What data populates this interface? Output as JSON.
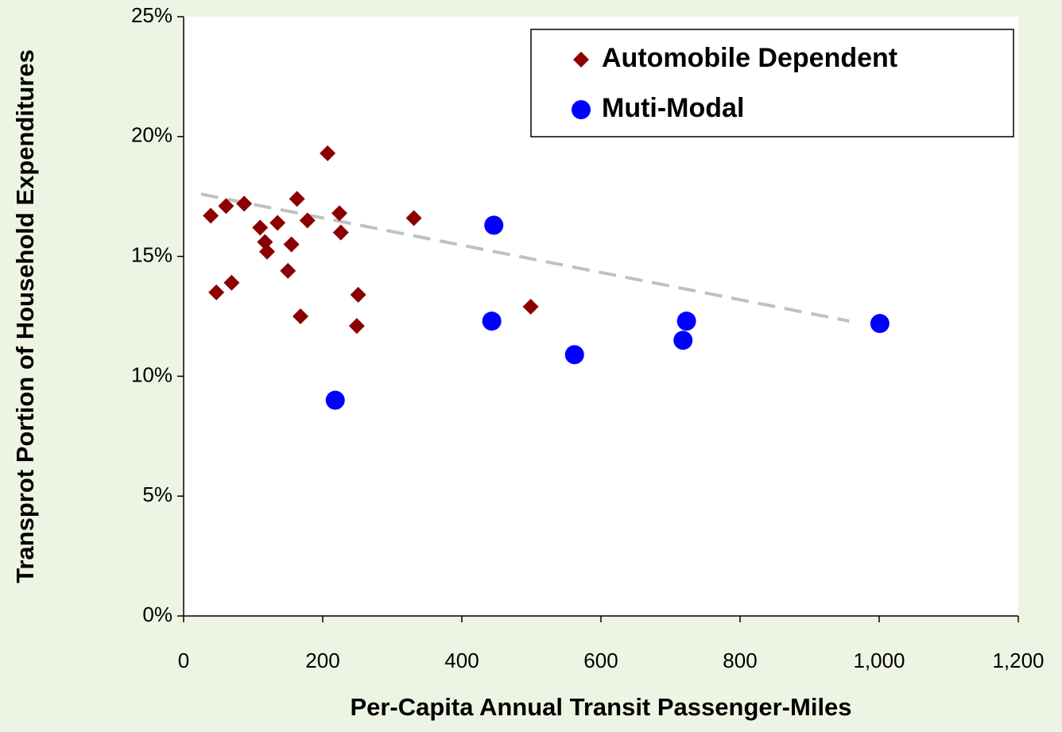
{
  "chart_data": {
    "type": "scatter",
    "xlabel": "Per-Capita Annual Transit Passenger-Miles",
    "ylabel": "Transprot Portion of Household Expenditures",
    "xlim": [
      0,
      1200
    ],
    "xticks": [
      0,
      200,
      400,
      600,
      800,
      {
        "value": 1000,
        "label": "1,000"
      },
      {
        "value": 1200,
        "label": "1,200"
      }
    ],
    "ylim": [
      0,
      25
    ],
    "yticks": [
      {
        "value": 0,
        "label": "0%"
      },
      {
        "value": 5,
        "label": "5%"
      },
      {
        "value": 10,
        "label": "10%"
      },
      {
        "value": 15,
        "label": "15%"
      },
      {
        "value": 20,
        "label": "20%"
      },
      {
        "value": 25,
        "label": "25%"
      }
    ],
    "legend": "upper right",
    "series": [
      {
        "name": "Automobile Dependent",
        "color": "#8b0000",
        "marker": "diamond",
        "x": [
          39,
          47,
          61,
          69,
          87,
          110,
          117,
          120,
          135,
          150,
          155,
          163,
          168,
          178,
          207,
          224,
          226,
          249,
          251,
          331,
          499
        ],
        "values": [
          16.7,
          13.5,
          17.1,
          13.9,
          17.2,
          16.2,
          15.6,
          15.2,
          16.4,
          14.4,
          15.5,
          17.4,
          12.5,
          16.5,
          19.3,
          16.8,
          16.0,
          12.1,
          13.4,
          16.6,
          12.9
        ]
      },
      {
        "name": "Muti-Modal",
        "color": "#0000ff",
        "marker": "circle",
        "x": [
          218,
          443,
          446,
          562,
          718,
          723,
          1001
        ],
        "values": [
          9.0,
          12.3,
          16.3,
          10.9,
          11.5,
          12.3,
          12.2
        ]
      }
    ],
    "trendline": {
      "color": "#c0c0c0",
      "x": [
        25,
        957
      ],
      "values": [
        17.6,
        12.3
      ]
    }
  }
}
